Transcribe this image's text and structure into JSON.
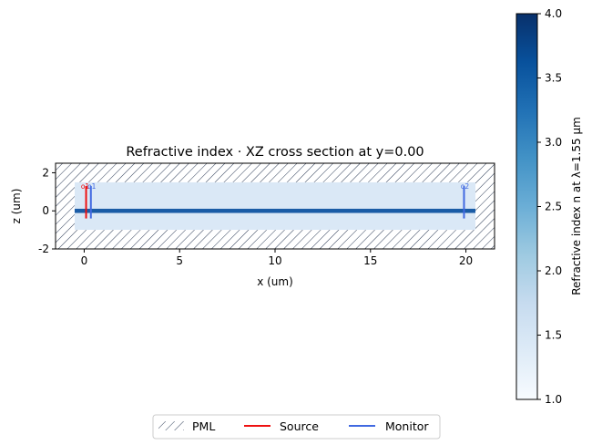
{
  "chart_data": {
    "type": "heatmap",
    "title": "Refractive index · XZ cross section at y=0.00",
    "xlabel": "x (um)",
    "ylabel": "z (um)",
    "xlim": [
      -1.5,
      21.5
    ],
    "ylim": [
      -2.0,
      2.5
    ],
    "xticks": [
      0,
      5,
      10,
      15,
      20
    ],
    "yticks": [
      -2,
      0,
      2
    ],
    "simulation_region": {
      "x": [
        -0.5,
        20.5
      ],
      "z": [
        -1.0,
        1.5
      ]
    },
    "pml_regions": [
      {
        "x": [
          -1.5,
          21.5
        ],
        "z": [
          1.5,
          2.5
        ]
      },
      {
        "x": [
          -1.5,
          21.5
        ],
        "z": [
          -2.0,
          -1.0
        ]
      },
      {
        "x": [
          -1.5,
          -0.5
        ],
        "z": [
          -1.0,
          1.5
        ]
      },
      {
        "x": [
          20.5,
          21.5
        ],
        "z": [
          -1.0,
          1.5
        ]
      }
    ],
    "waveguide": {
      "x": [
        -1.5,
        21.5
      ],
      "z": [
        -0.11,
        0.11
      ],
      "index": 3.48
    },
    "background_index": 1.44,
    "source": {
      "name": "o1",
      "x": 0.1,
      "z": [
        -0.4,
        1.3
      ],
      "color": "#ee1111"
    },
    "monitors": [
      {
        "name": "o1",
        "x": 0.35,
        "z": [
          -0.4,
          1.3
        ],
        "color": "#4169e1"
      },
      {
        "name": "o2",
        "x": 19.9,
        "z": [
          -0.4,
          1.3
        ],
        "color": "#4169e1"
      }
    ],
    "colorbar": {
      "label": "Refractive index n at λ=1.55 µm",
      "min": 1.0,
      "max": 4.0,
      "ticks": [
        "1.0",
        "1.5",
        "2.0",
        "2.5",
        "3.0",
        "3.5",
        "4.0"
      ],
      "colormap": "Blues"
    },
    "legend": {
      "placement": "bottom-center",
      "items": [
        {
          "label": "PML",
          "style": "hatch"
        },
        {
          "label": "Source",
          "style": "line",
          "color": "#ee1111"
        },
        {
          "label": "Monitor",
          "style": "line",
          "color": "#4169e1"
        }
      ]
    },
    "grid": false
  }
}
